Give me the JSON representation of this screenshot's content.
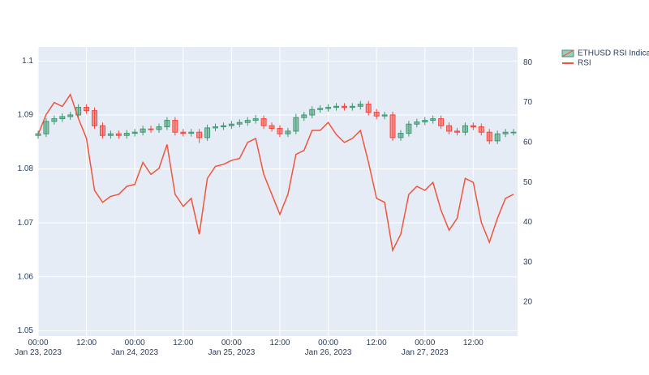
{
  "chart_data": {
    "type": "candlestick",
    "x": [
      "2023-01-23 00:00",
      "2023-01-23 02:00",
      "2023-01-23 04:00",
      "2023-01-23 06:00",
      "2023-01-23 08:00",
      "2023-01-23 10:00",
      "2023-01-23 12:00",
      "2023-01-23 14:00",
      "2023-01-23 16:00",
      "2023-01-23 18:00",
      "2023-01-23 20:00",
      "2023-01-23 22:00",
      "2023-01-24 00:00",
      "2023-01-24 02:00",
      "2023-01-24 04:00",
      "2023-01-24 06:00",
      "2023-01-24 08:00",
      "2023-01-24 10:00",
      "2023-01-24 12:00",
      "2023-01-24 14:00",
      "2023-01-24 16:00",
      "2023-01-24 18:00",
      "2023-01-24 20:00",
      "2023-01-24 22:00",
      "2023-01-25 00:00",
      "2023-01-25 02:00",
      "2023-01-25 04:00",
      "2023-01-25 06:00",
      "2023-01-25 08:00",
      "2023-01-25 10:00",
      "2023-01-25 12:00",
      "2023-01-25 14:00",
      "2023-01-25 16:00",
      "2023-01-25 18:00",
      "2023-01-25 20:00",
      "2023-01-25 22:00",
      "2023-01-26 00:00",
      "2023-01-26 02:00",
      "2023-01-26 04:00",
      "2023-01-26 06:00",
      "2023-01-26 08:00",
      "2023-01-26 10:00",
      "2023-01-26 12:00",
      "2023-01-26 14:00",
      "2023-01-26 16:00",
      "2023-01-26 18:00",
      "2023-01-26 20:00",
      "2023-01-26 22:00",
      "2023-01-27 00:00",
      "2023-01-27 02:00",
      "2023-01-27 04:00",
      "2023-01-27 06:00",
      "2023-01-27 08:00",
      "2023-01-27 10:00",
      "2023-01-27 12:00",
      "2023-01-27 14:00",
      "2023-01-27 16:00",
      "2023-01-27 18:00",
      "2023-01-27 20:00",
      "2023-01-27 22:00"
    ],
    "series": [
      {
        "type": "candlestick",
        "name": "ETHUSD RSI Indicator",
        "increasing_color": "#3D9970",
        "decreasing_color": "#FF4136",
        "open": [
          1.0862,
          1.0865,
          1.0888,
          1.0893,
          1.0897,
          1.09,
          1.0914,
          1.0908,
          1.088,
          1.0862,
          1.0865,
          1.0862,
          1.0866,
          1.0868,
          1.0874,
          1.0873,
          1.0878,
          1.089,
          1.0868,
          1.0866,
          1.0868,
          1.0858,
          1.0876,
          1.0878,
          1.088,
          1.0883,
          1.0886,
          1.089,
          1.0893,
          1.088,
          1.0875,
          1.0865,
          1.087,
          1.0895,
          1.09,
          1.091,
          1.0912,
          1.0914,
          1.0916,
          1.0914,
          1.0916,
          1.092,
          1.0905,
          1.0898,
          1.09,
          1.0858,
          1.0866,
          1.0883,
          1.0887,
          1.089,
          1.0893,
          1.088,
          1.087,
          1.0868,
          1.088,
          1.0878,
          1.0868,
          1.0852,
          1.0865,
          1.0868
        ],
        "high": [
          1.0871,
          1.0894,
          1.0899,
          1.0903,
          1.0906,
          1.092,
          1.092,
          1.0914,
          1.0886,
          1.0871,
          1.0871,
          1.0872,
          1.0874,
          1.088,
          1.088,
          1.0884,
          1.0896,
          1.0896,
          1.0874,
          1.0874,
          1.0874,
          1.0882,
          1.0884,
          1.0886,
          1.0889,
          1.0892,
          1.0896,
          1.09,
          1.0899,
          1.0886,
          1.0881,
          1.0876,
          1.0902,
          1.0906,
          1.0916,
          1.0918,
          1.092,
          1.0922,
          1.0922,
          1.0922,
          1.0926,
          1.0926,
          1.0911,
          1.0906,
          1.0906,
          1.0872,
          1.0889,
          1.0893,
          1.0896,
          1.0899,
          1.0899,
          1.0886,
          1.0876,
          1.0886,
          1.0886,
          1.0884,
          1.0874,
          1.0871,
          1.0874,
          1.0874
        ],
        "low": [
          1.0856,
          1.0859,
          1.0882,
          1.0887,
          1.0891,
          1.0894,
          1.0902,
          1.0874,
          1.0856,
          1.0856,
          1.0856,
          1.0856,
          1.086,
          1.0862,
          1.0867,
          1.0867,
          1.0872,
          1.0862,
          1.086,
          1.086,
          1.0848,
          1.0852,
          1.087,
          1.0872,
          1.0874,
          1.0877,
          1.088,
          1.0884,
          1.0874,
          1.0869,
          1.0859,
          1.0859,
          1.0864,
          1.0889,
          1.0894,
          1.0904,
          1.0906,
          1.0908,
          1.0908,
          1.0908,
          1.091,
          1.0899,
          1.0892,
          1.0892,
          1.0852,
          1.0852,
          1.086,
          1.0877,
          1.0881,
          1.0884,
          1.0874,
          1.0864,
          1.0862,
          1.0862,
          1.0872,
          1.0862,
          1.0846,
          1.0846,
          1.0859,
          1.0862
        ],
        "close": [
          1.0865,
          1.0888,
          1.0893,
          1.0897,
          1.09,
          1.0914,
          1.0908,
          1.088,
          1.0862,
          1.0865,
          1.0862,
          1.0866,
          1.0868,
          1.0874,
          1.0873,
          1.0878,
          1.089,
          1.0868,
          1.0866,
          1.0868,
          1.0858,
          1.0876,
          1.0878,
          1.088,
          1.0883,
          1.0886,
          1.089,
          1.0893,
          1.088,
          1.0875,
          1.0865,
          1.087,
          1.0895,
          1.09,
          1.091,
          1.0912,
          1.0914,
          1.0916,
          1.0914,
          1.0916,
          1.092,
          1.0905,
          1.0898,
          1.09,
          1.0858,
          1.0866,
          1.0883,
          1.0887,
          1.089,
          1.0893,
          1.088,
          1.087,
          1.0868,
          1.088,
          1.0878,
          1.0868,
          1.0852,
          1.0865,
          1.0868,
          1.0868
        ]
      },
      {
        "type": "line",
        "name": "RSI",
        "color": "#EF553B",
        "axis": "y2",
        "values": [
          62,
          67,
          70,
          69,
          72,
          66,
          61,
          48,
          45,
          46.5,
          47,
          49,
          49.5,
          55,
          52,
          53.5,
          59.5,
          47,
          44,
          46,
          37,
          51,
          54,
          54.5,
          55.5,
          56,
          60,
          61,
          52,
          47,
          42,
          47,
          57,
          58,
          63,
          63,
          65,
          62,
          60,
          61,
          63,
          55,
          46,
          45,
          33,
          37,
          47,
          49,
          48,
          50,
          43,
          38,
          41,
          51,
          50,
          40,
          35,
          41,
          46,
          47
        ]
      }
    ],
    "xlim": [
      "2023-01-23 00:00",
      "2023-01-27 23:00"
    ],
    "xticks": [
      {
        "value": "2023-01-23 00:00",
        "label": "00:00\nJan 23, 2023"
      },
      {
        "value": "2023-01-23 12:00",
        "label": "12:00"
      },
      {
        "value": "2023-01-24 00:00",
        "label": "00:00\nJan 24, 2023"
      },
      {
        "value": "2023-01-24 12:00",
        "label": "12:00"
      },
      {
        "value": "2023-01-25 00:00",
        "label": "00:00\nJan 25, 2023"
      },
      {
        "value": "2023-01-25 12:00",
        "label": "12:00"
      },
      {
        "value": "2023-01-26 00:00",
        "label": "00:00\nJan 26, 2023"
      },
      {
        "value": "2023-01-26 12:00",
        "label": "12:00"
      },
      {
        "value": "2023-01-27 00:00",
        "label": "00:00\nJan 27, 2023"
      },
      {
        "value": "2023-01-27 12:00",
        "label": "12:00"
      }
    ],
    "ylim": [
      1.049,
      1.1026
    ],
    "yticks": [
      1.05,
      1.06,
      1.07,
      1.08,
      1.09,
      1.1
    ],
    "y2lim": [
      11.5,
      83.9
    ],
    "y2ticks": [
      20,
      30,
      40,
      50,
      60,
      70,
      80
    ],
    "grid": true
  }
}
